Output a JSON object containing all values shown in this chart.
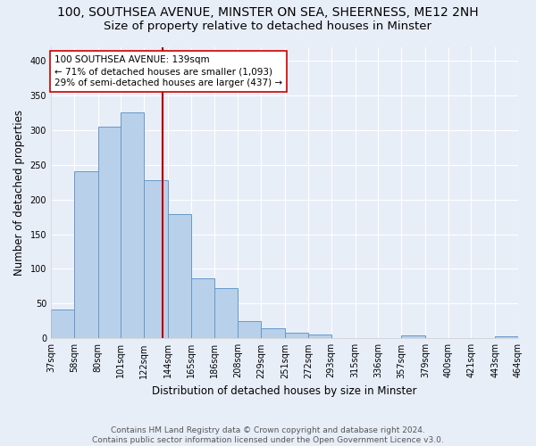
{
  "title_line1": "100, SOUTHSEA AVENUE, MINSTER ON SEA, SHEERNESS, ME12 2NH",
  "title_line2": "Size of property relative to detached houses in Minster",
  "xlabel": "Distribution of detached houses by size in Minster",
  "ylabel": "Number of detached properties",
  "bin_edges": [
    37,
    58,
    80,
    101,
    122,
    144,
    165,
    186,
    208,
    229,
    251,
    272,
    293,
    315,
    336,
    357,
    379,
    400,
    421,
    443,
    464
  ],
  "bin_labels": [
    "37sqm",
    "58sqm",
    "80sqm",
    "101sqm",
    "122sqm",
    "144sqm",
    "165sqm",
    "186sqm",
    "208sqm",
    "229sqm",
    "251sqm",
    "272sqm",
    "293sqm",
    "315sqm",
    "336sqm",
    "357sqm",
    "379sqm",
    "400sqm",
    "421sqm",
    "443sqm",
    "464sqm"
  ],
  "counts": [
    42,
    241,
    305,
    325,
    228,
    179,
    87,
    72,
    25,
    15,
    8,
    5,
    0,
    0,
    0,
    4,
    0,
    0,
    0,
    3
  ],
  "bar_color": "#b8d0ea",
  "bar_edge_color": "#6699cc",
  "vline_x": 139,
  "vline_color": "#cc0000",
  "annotation_text": "100 SOUTHSEA AVENUE: 139sqm\n← 71% of detached houses are smaller (1,093)\n29% of semi-detached houses are larger (437) →",
  "annotation_box_color": "white",
  "annotation_box_edge": "#cc0000",
  "ylim": [
    0,
    420
  ],
  "yticks": [
    0,
    50,
    100,
    150,
    200,
    250,
    300,
    350,
    400
  ],
  "footer_text": "Contains HM Land Registry data © Crown copyright and database right 2024.\nContains public sector information licensed under the Open Government Licence v3.0.",
  "background_color": "#e8eef8",
  "grid_color": "white",
  "title1_fontsize": 10,
  "title2_fontsize": 9.5,
  "xlabel_fontsize": 8.5,
  "ylabel_fontsize": 8.5,
  "annotation_fontsize": 7.5,
  "tick_fontsize": 7,
  "footer_fontsize": 6.5
}
